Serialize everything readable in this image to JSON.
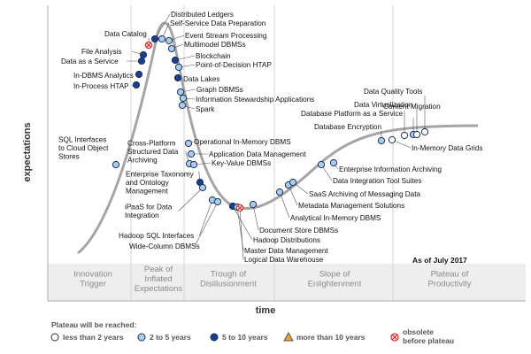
{
  "axes": {
    "x_title": "time",
    "y_title": "expectations"
  },
  "as_of": "As of July 2017",
  "phases": [
    {
      "lines": [
        "Innovation",
        "Trigger"
      ]
    },
    {
      "lines": [
        "Peak of",
        "Inflated",
        "Expectations"
      ]
    },
    {
      "lines": [
        "Trough of",
        "Disillusionment"
      ]
    },
    {
      "lines": [
        "Slope of",
        "Enlightenment"
      ]
    },
    {
      "lines": [
        "Plateau of",
        "Productivity"
      ]
    }
  ],
  "legend": {
    "title": "Plateau will be reached:",
    "items": [
      {
        "label": "less than 2 years",
        "marker": "circle",
        "color": "#ffffff"
      },
      {
        "label": "2 to 5 years",
        "marker": "circle",
        "color": "#a9cdea"
      },
      {
        "label": "5 to 10 years",
        "marker": "circle",
        "color": "#1b3f8f"
      },
      {
        "label": "more than 10 years",
        "marker": "triangle",
        "color": "#f0a030"
      },
      {
        "label": "obsolete before plateau",
        "lines": [
          "obsolete",
          "before plateau"
        ],
        "marker": "x-circle",
        "color": "#e03030"
      }
    ]
  },
  "technologies": [
    {
      "name": "SQL Interfaces to Cloud Object Stores",
      "lines": [
        "SQL Interfaces",
        "to Cloud Object",
        "Stores"
      ],
      "category": "2 to 5 years"
    },
    {
      "name": "In-Process HTAP",
      "category": "5 to 10 years"
    },
    {
      "name": "In-DBMS Analytics",
      "category": "5 to 10 years"
    },
    {
      "name": "Data as a Service",
      "category": "5 to 10 years"
    },
    {
      "name": "File Analysis",
      "category": "5 to 10 years"
    },
    {
      "name": "Data Catalog",
      "category": "obsolete before plateau"
    },
    {
      "name": "Distributed Ledgers",
      "category": "5 to 10 years"
    },
    {
      "name": "Self-Service Data Preparation",
      "category": "2 to 5 years"
    },
    {
      "name": "Event Stream Processing",
      "category": "2 to 5 years"
    },
    {
      "name": "Multimodel DBMSs",
      "category": "2 to 5 years"
    },
    {
      "name": "Blockchain",
      "category": "5 to 10 years"
    },
    {
      "name": "Point-of-Decision HTAP",
      "category": "2 to 5 years"
    },
    {
      "name": "Data Lakes",
      "category": "5 to 10 years"
    },
    {
      "name": "Graph DBMSs",
      "category": "2 to 5 years"
    },
    {
      "name": "Information Stewardship Applications",
      "category": "2 to 5 years"
    },
    {
      "name": "Spark",
      "category": "2 to 5 years"
    },
    {
      "name": "Operational In-Memory DBMS",
      "category": "2 to 5 years"
    },
    {
      "name": "Cross-Platform Structured Data Archiving",
      "lines": [
        "Cross-Platform",
        "Structured Data",
        "Archiving"
      ],
      "category": "2 to 5 years"
    },
    {
      "name": "Application Data Management",
      "category": "2 to 5 years"
    },
    {
      "name": "Key-Value DBMSs",
      "category": "2 to 5 years"
    },
    {
      "name": "Enterprise Taxonomy and Ontology Management",
      "lines": [
        "Enterprise Taxonomy",
        "and Ontology",
        "Management"
      ],
      "category": "5 to 10 years"
    },
    {
      "name": "iPaaS for Data Integration",
      "lines": [
        "iPaaS for Data",
        "Integration"
      ],
      "category": "2 to 5 years"
    },
    {
      "name": "Hadoop SQL Interfaces",
      "category": "2 to 5 years"
    },
    {
      "name": "Wide-Column DBMSs",
      "category": "2 to 5 years"
    },
    {
      "name": "Hadoop Distributions",
      "category": "5 to 10 years"
    },
    {
      "name": "Master Data Management",
      "category": "2 to 5 years"
    },
    {
      "name": "Logical Data Warehouse",
      "category": "obsolete before plateau"
    },
    {
      "name": "Document Store DBMSs",
      "category": "2 to 5 years"
    },
    {
      "name": "Analytical In-Memory DBMS",
      "category": "2 to 5 years"
    },
    {
      "name": "Metadata Management Solutions",
      "category": "2 to 5 years"
    },
    {
      "name": "SaaS Archiving of Messaging Data",
      "category": "2 to 5 years"
    },
    {
      "name": "Data Integration Tool Suites",
      "category": "2 to 5 years"
    },
    {
      "name": "Enterprise Information Archiving",
      "category": "2 to 5 years"
    },
    {
      "name": "Database Encryption",
      "category": "2 to 5 years"
    },
    {
      "name": "In-Memory Data Grids",
      "category": "less than 2 years"
    },
    {
      "name": "Content Migration",
      "category": "less than 2 years"
    },
    {
      "name": "Database Platform as a Service",
      "category": "2 to 5 years"
    },
    {
      "name": "Data Virtualization",
      "category": "less than 2 years"
    },
    {
      "name": "Data Quality Tools",
      "category": "less than 2 years"
    }
  ]
}
